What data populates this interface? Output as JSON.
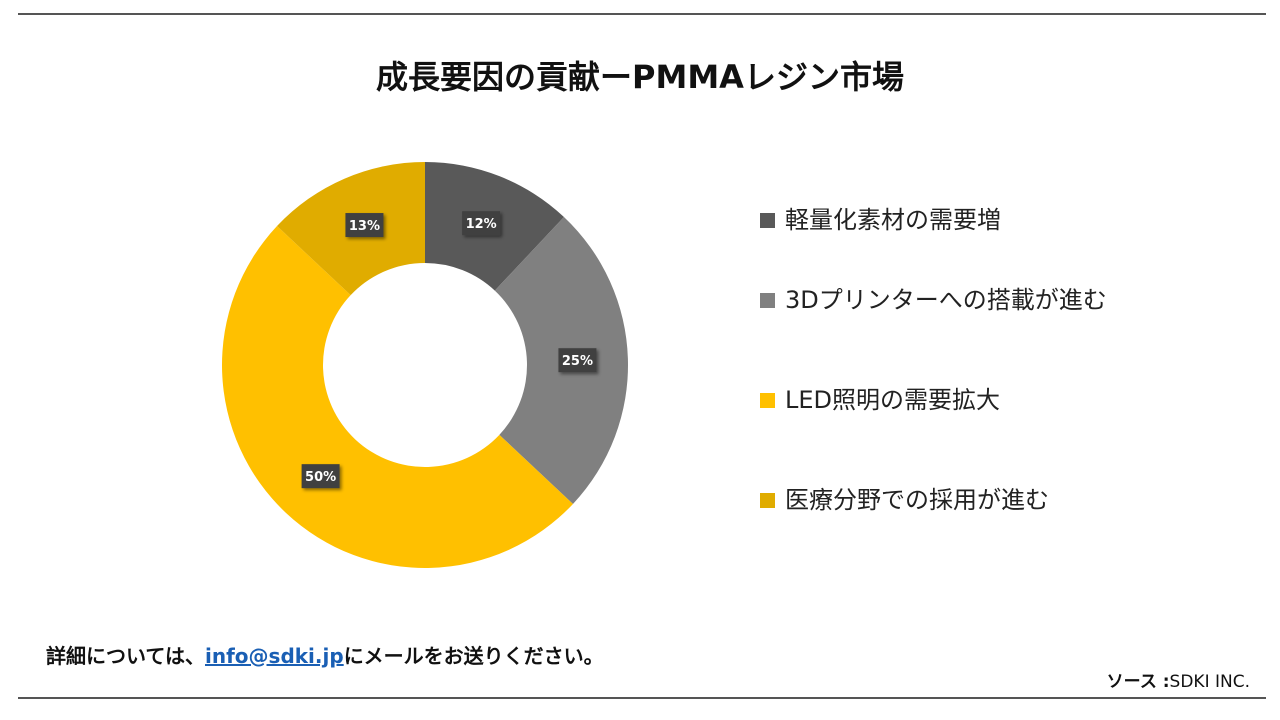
{
  "title": "成長要因の貢献ーPMMAレジン市場",
  "chart_data": {
    "type": "pie",
    "donut": true,
    "categories": [
      "軽量化素材の需要増",
      "3Dプリンターへの搭載が進む",
      "LED照明の需要拡大",
      "医療分野での採用が進む"
    ],
    "values": [
      12,
      25,
      50,
      13
    ],
    "data_labels": [
      "12%",
      "25%",
      "50%",
      "13%"
    ],
    "colors": [
      "#595959",
      "#808080",
      "#FFC000",
      "#E0AC00"
    ],
    "legend_position": "right"
  },
  "footer": {
    "contact_prefix": "詳細については、",
    "email": "info@sdki.jp",
    "contact_suffix": "にメールをお送りください。",
    "source_label": "ソース",
    "source_sep": " :",
    "source_value": "SDKI INC."
  }
}
